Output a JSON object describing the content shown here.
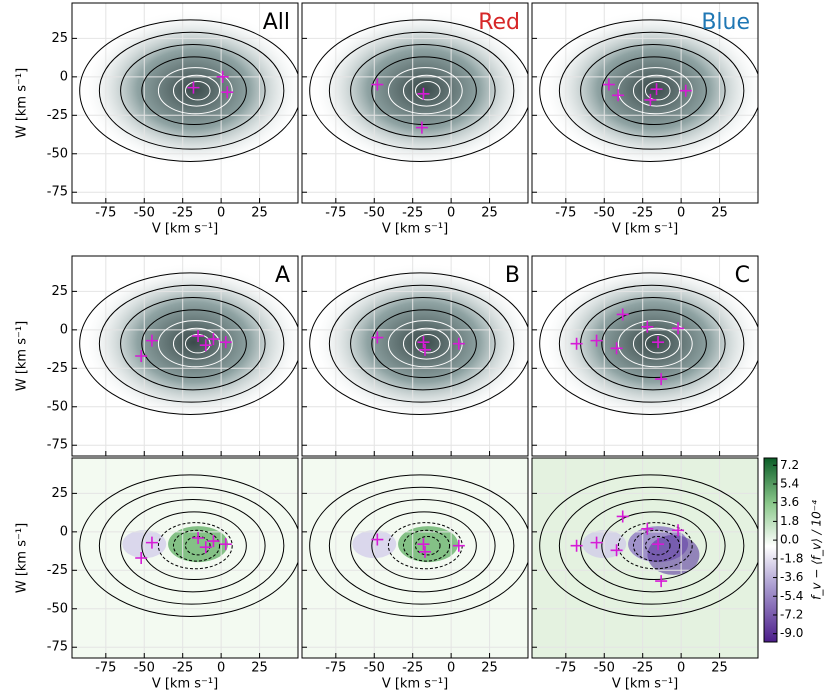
{
  "chart_data": [
    {
      "type": "contour",
      "label": "All",
      "label_color": "#000000",
      "ylabel": "W [km s⁻¹]",
      "xlabel": "V [km s⁻¹]",
      "xlim": [
        -97,
        50
      ],
      "ylim": [
        -82,
        48
      ],
      "xticks": [
        -75,
        -50,
        -25,
        0,
        25
      ],
      "yticks": [
        25,
        0,
        -25,
        -50,
        -75
      ],
      "peaks": {
        "x": [
          -18,
          1,
          4
        ],
        "y": [
          -7,
          0,
          -10
        ]
      }
    },
    {
      "type": "contour",
      "label": "Red",
      "label_color": "#d62728",
      "xlabel": "V [km s⁻¹]",
      "xlim": [
        -97,
        50
      ],
      "ylim": [
        -82,
        48
      ],
      "xticks": [
        -75,
        -50,
        -25,
        0,
        25
      ],
      "yticks": [
        25,
        0,
        -25,
        -50,
        -75
      ],
      "peaks": {
        "x": [
          -48,
          -18,
          -19
        ],
        "y": [
          -5,
          -11,
          -33
        ]
      }
    },
    {
      "type": "contour",
      "label": "Blue",
      "label_color": "#1f77b4",
      "xlabel": "V [km s⁻¹]",
      "xlim": [
        -97,
        50
      ],
      "ylim": [
        -82,
        48
      ],
      "xticks": [
        -75,
        -50,
        -25,
        0,
        25
      ],
      "yticks": [
        25,
        0,
        -25,
        -50,
        -75
      ],
      "peaks": {
        "x": [
          -47,
          -41,
          -20,
          -16,
          3
        ],
        "y": [
          -5,
          -12,
          -15,
          -8,
          -9
        ]
      }
    },
    {
      "type": "contour",
      "label": "A",
      "label_color": "#000000",
      "ylabel": "W [km s⁻¹]",
      "xlim": [
        -97,
        50
      ],
      "ylim": [
        -82,
        48
      ],
      "xticks": [
        -75,
        -50,
        -25,
        0,
        25
      ],
      "yticks": [
        25,
        0,
        -25,
        -50,
        -75
      ],
      "peaks": {
        "x": [
          -45,
          -52,
          -15,
          -10,
          -5,
          3
        ],
        "y": [
          -7,
          -17,
          -4,
          -10,
          -6,
          -8
        ]
      }
    },
    {
      "type": "contour",
      "label": "B",
      "label_color": "#000000",
      "xlim": [
        -97,
        50
      ],
      "ylim": [
        -82,
        48
      ],
      "xticks": [
        -75,
        -50,
        -25,
        0,
        25
      ],
      "yticks": [
        25,
        0,
        -25,
        -50,
        -75
      ],
      "peaks": {
        "x": [
          -48,
          -18,
          -17,
          5
        ],
        "y": [
          -5,
          -8,
          -13,
          -9
        ]
      }
    },
    {
      "type": "contour",
      "label": "C",
      "label_color": "#000000",
      "xlim": [
        -97,
        50
      ],
      "ylim": [
        -82,
        48
      ],
      "xticks": [
        -75,
        -50,
        -25,
        0,
        25
      ],
      "yticks": [
        25,
        0,
        -25,
        -50,
        -75
      ],
      "peaks": {
        "x": [
          -68,
          -55,
          -42,
          -38,
          -22,
          -15,
          -13,
          -2
        ],
        "y": [
          -9,
          -7,
          -12,
          10,
          2,
          -8,
          -32,
          1
        ]
      }
    },
    {
      "type": "residual",
      "ylabel": "W [km s⁻¹]",
      "xlabel": "V [km s⁻¹]",
      "xlim": [
        -97,
        50
      ],
      "ylim": [
        -82,
        48
      ],
      "xticks": [
        -75,
        -50,
        -25,
        0,
        25
      ],
      "yticks": [
        25,
        0,
        -25,
        -50,
        -75
      ],
      "peaks": {
        "x": [
          -45,
          -52,
          -15,
          -10,
          -5,
          3
        ],
        "y": [
          -7,
          -17,
          -4,
          -10,
          -6,
          -8
        ]
      }
    },
    {
      "type": "residual",
      "xlabel": "V [km s⁻¹]",
      "xlim": [
        -97,
        50
      ],
      "ylim": [
        -82,
        48
      ],
      "xticks": [
        -75,
        -50,
        -25,
        0,
        25
      ],
      "yticks": [
        25,
        0,
        -25,
        -50,
        -75
      ],
      "peaks": {
        "x": [
          -48,
          -18,
          -17,
          5
        ],
        "y": [
          -5,
          -8,
          -13,
          -9
        ]
      }
    },
    {
      "type": "residual",
      "xlabel": "V [km s⁻¹]",
      "xlim": [
        -97,
        50
      ],
      "ylim": [
        -82,
        48
      ],
      "xticks": [
        -75,
        -50,
        -25,
        0,
        25
      ],
      "yticks": [
        25,
        0,
        -25,
        -50,
        -75
      ],
      "peaks": {
        "x": [
          -68,
          -55,
          -42,
          -38,
          -22,
          -15,
          -13,
          -2
        ],
        "y": [
          -9,
          -7,
          -12,
          10,
          2,
          -8,
          -32,
          1
        ]
      }
    },
    {
      "type": "colorbar",
      "label": "f_v − ⟨f_v⟩ / 10⁻⁴",
      "ylim": [
        -9.8,
        7.9
      ],
      "yticks": [
        7.2,
        5.4,
        3.6,
        1.8,
        {
          "value": 0,
          "label": "0.0"
        },
        -1.8,
        -3.6,
        -5.4,
        -7.2,
        {
          "value": -9,
          "label": "-9.0"
        }
      ]
    }
  ]
}
